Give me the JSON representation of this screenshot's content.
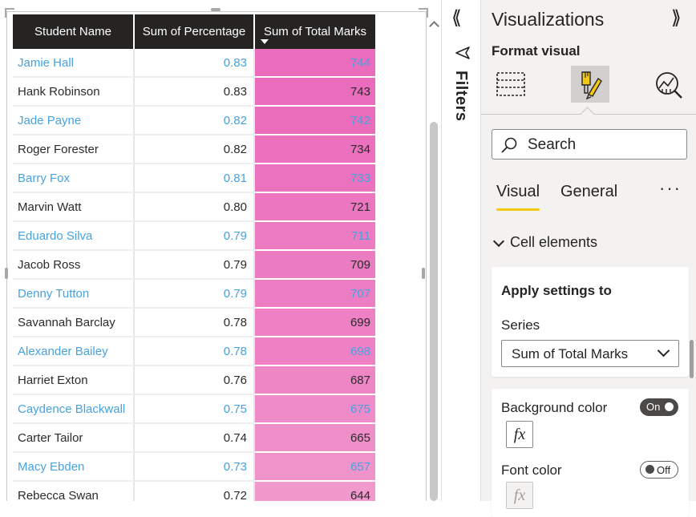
{
  "table": {
    "headers": {
      "student_name": "Student Name",
      "sum_percentage": "Sum of Percentage",
      "sum_total_marks": "Sum of Total Marks"
    },
    "sort": {
      "column": "Sum of Total Marks",
      "direction": "descending"
    },
    "rows": [
      {
        "name": "Jamie Hall",
        "percentage": "0.83",
        "marks": "744",
        "shade": "#ea6cbc"
      },
      {
        "name": "Hank Robinson",
        "percentage": "0.83",
        "marks": "743",
        "shade": "#ea6cbc"
      },
      {
        "name": "Jade Payne",
        "percentage": "0.82",
        "marks": "742",
        "shade": "#ea6dbc"
      },
      {
        "name": "Roger Forester",
        "percentage": "0.82",
        "marks": "734",
        "shade": "#eb71be"
      },
      {
        "name": "Barry Fox",
        "percentage": "0.81",
        "marks": "733",
        "shade": "#eb72be"
      },
      {
        "name": "Marvin Watt",
        "percentage": "0.80",
        "marks": "721",
        "shade": "#ec77c0"
      },
      {
        "name": "Eduardo Silva",
        "percentage": "0.79",
        "marks": "711",
        "shade": "#ec7bc2"
      },
      {
        "name": "Jacob Ross",
        "percentage": "0.79",
        "marks": "709",
        "shade": "#ec7cc2"
      },
      {
        "name": "Denny Tutton",
        "percentage": "0.79",
        "marks": "707",
        "shade": "#ed7dc3"
      },
      {
        "name": "Savannah Barclay",
        "percentage": "0.78",
        "marks": "699",
        "shade": "#ed81c4"
      },
      {
        "name": "Alexander Bailey",
        "percentage": "0.78",
        "marks": "698",
        "shade": "#ed81c4"
      },
      {
        "name": "Harriet Exton",
        "percentage": "0.76",
        "marks": "687",
        "shade": "#ee86c6"
      },
      {
        "name": "Caydence Blackwall",
        "percentage": "0.75",
        "marks": "675",
        "shade": "#ef8bc8"
      },
      {
        "name": "Carter Tailor",
        "percentage": "0.74",
        "marks": "665",
        "shade": "#ef8fca"
      },
      {
        "name": "Macy Ebden",
        "percentage": "0.73",
        "marks": "657",
        "shade": "#f093cb"
      },
      {
        "name": "Rebecca Swan",
        "percentage": "0.72",
        "marks": "644",
        "shade": "#f198cd"
      }
    ]
  },
  "filters": {
    "label": "Filters",
    "collapse_icon": "double-chevron-left-icon"
  },
  "visualizations": {
    "title": "Visualizations",
    "expand_icon": "double-chevron-right-icon",
    "format_visual_label": "Format visual",
    "icons": [
      "build-visual-icon",
      "format-visual-icon",
      "analytics-icon"
    ],
    "search": {
      "placeholder": "Search"
    },
    "tabs": [
      "Visual",
      "General"
    ],
    "active_tab": "Visual",
    "more_icon": "more-options-icon",
    "section": "Cell elements",
    "apply_settings": {
      "title": "Apply settings to",
      "series_label": "Series",
      "series_value": "Sum of Total Marks"
    },
    "background_color": {
      "label": "Background color",
      "toggle": "On"
    },
    "font_color": {
      "label": "Font color",
      "toggle": "Off"
    },
    "fx_label": "fx",
    "accent_colors": {
      "tab_underline": "#f2c811",
      "header_bg": "#252423",
      "header_border": "#118dff",
      "alt_text": "#46a3e0"
    }
  }
}
